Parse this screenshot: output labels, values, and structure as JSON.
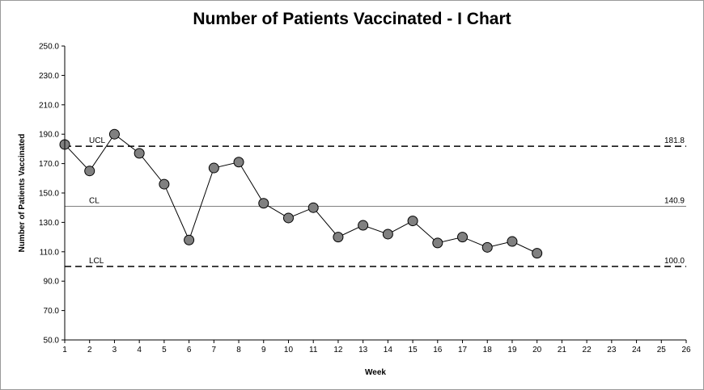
{
  "chart_data": {
    "type": "line",
    "title": "Number of Patients Vaccinated - I Chart",
    "xlabel": "Week",
    "ylabel": "Number of Patients  Vaccinated",
    "x": [
      1,
      2,
      3,
      4,
      5,
      6,
      7,
      8,
      9,
      10,
      11,
      12,
      13,
      14,
      15,
      16,
      17,
      18,
      19,
      20
    ],
    "values": [
      183,
      165,
      190,
      177,
      156,
      118,
      167,
      171,
      143,
      133,
      140,
      120,
      128,
      122,
      131,
      116,
      120,
      113,
      117,
      109
    ],
    "xlim": [
      1,
      26
    ],
    "x_ticks": [
      "1",
      "2",
      "3",
      "4",
      "5",
      "6",
      "7",
      "8",
      "9",
      "10",
      "11",
      "12",
      "13",
      "14",
      "15",
      "16",
      "17",
      "18",
      "19",
      "20",
      "21",
      "22",
      "23",
      "24",
      "25",
      "26"
    ],
    "ylim": [
      50,
      250
    ],
    "y_ticks": [
      "50.0",
      "70.0",
      "90.0",
      "110.0",
      "130.0",
      "150.0",
      "170.0",
      "190.0",
      "210.0",
      "230.0",
      "250.0"
    ],
    "grid": false,
    "control_limits": [
      {
        "name": "UCL",
        "value": 181.8,
        "value_label": "181.8",
        "style": "dashed"
      },
      {
        "name": "CL",
        "value": 140.9,
        "value_label": "140.9",
        "style": "solid"
      },
      {
        "name": "LCL",
        "value": 100.0,
        "value_label": "100.0",
        "style": "dashed"
      }
    ],
    "colors": {
      "marker_fill": "#808080",
      "marker_stroke": "#000000",
      "line": "#000000",
      "center_line": "#808080"
    }
  }
}
